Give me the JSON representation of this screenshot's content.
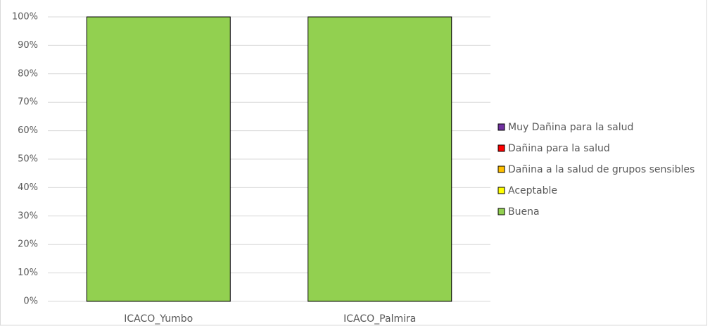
{
  "chart_data": {
    "type": "stacked-bar",
    "categories": [
      "ICACO_Yumbo",
      "ICACO_Palmira"
    ],
    "series": [
      {
        "name": "Buena",
        "color": "#92d050",
        "values": [
          100,
          100
        ]
      },
      {
        "name": "Aceptable",
        "color": "#ffff00",
        "values": [
          0,
          0
        ]
      },
      {
        "name": "Dañina a la salud de grupos sensibles",
        "color": "#ffc000",
        "values": [
          0,
          0
        ]
      },
      {
        "name": "Dañina para la salud",
        "color": "#ff0000",
        "values": [
          0,
          0
        ]
      },
      {
        "name": "Muy Dañina para la salud",
        "color": "#7030a0",
        "values": [
          0,
          0
        ]
      }
    ],
    "ylim": [
      0,
      100
    ],
    "yticks": [
      {
        "value": 0,
        "label": "0%"
      },
      {
        "value": 10,
        "label": "10%"
      },
      {
        "value": 20,
        "label": "20%"
      },
      {
        "value": 30,
        "label": "30%"
      },
      {
        "value": 40,
        "label": "40%"
      },
      {
        "value": 50,
        "label": "50%"
      },
      {
        "value": 60,
        "label": "60%"
      },
      {
        "value": 70,
        "label": "70%"
      },
      {
        "value": 80,
        "label": "80%"
      },
      {
        "value": 90,
        "label": "90%"
      },
      {
        "value": 100,
        "label": "100%"
      }
    ],
    "grid": true,
    "legend": "right"
  }
}
